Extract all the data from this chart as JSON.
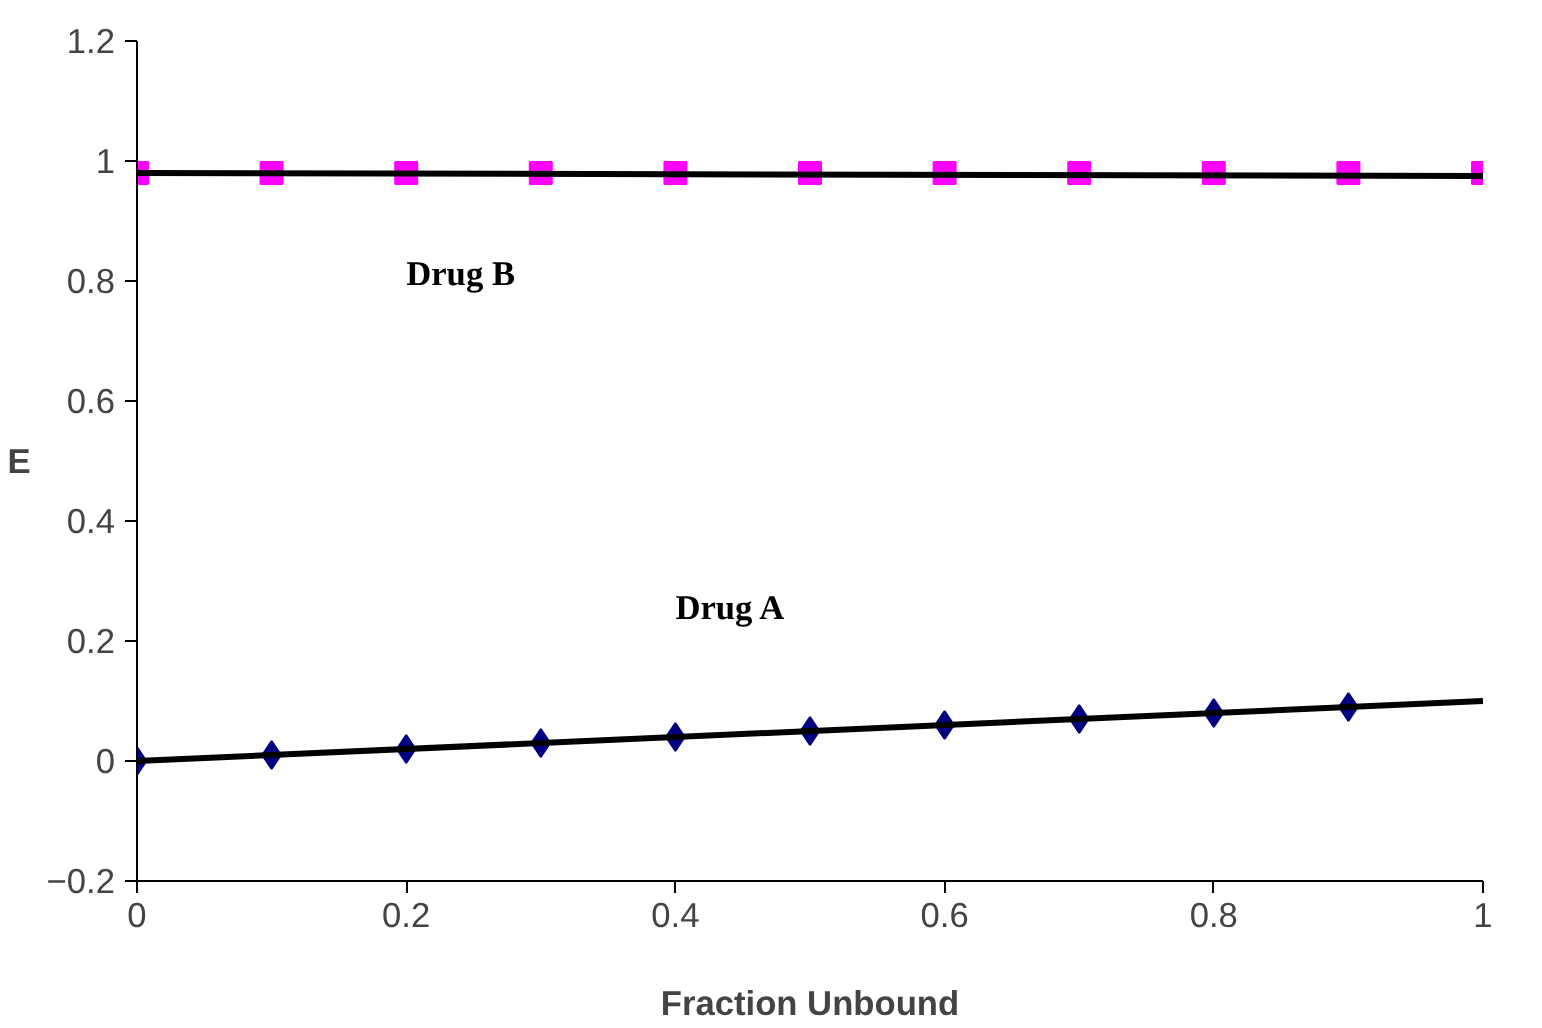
{
  "chart_data": {
    "type": "scatter",
    "xlabel": "Fraction Unbound",
    "ylabel": "E",
    "xlim": [
      0,
      1
    ],
    "ylim": [
      -0.2,
      1.2
    ],
    "xticks": [
      0,
      0.2,
      0.4,
      0.6,
      0.8,
      1
    ],
    "yticks": [
      -0.2,
      0,
      0.2,
      0.4,
      0.6,
      0.8,
      1,
      1.2
    ],
    "grid": false,
    "series": [
      {
        "name": "Drug A",
        "marker": "diamond",
        "color": "#000080",
        "x": [
          0,
          0.1,
          0.2,
          0.3,
          0.4,
          0.5,
          0.6,
          0.7,
          0.8,
          0.9
        ],
        "values": [
          0,
          0.01,
          0.02,
          0.03,
          0.04,
          0.05,
          0.06,
          0.07,
          0.08,
          0.09
        ]
      },
      {
        "name": "Drug B",
        "marker": "square",
        "color": "#ff00ff",
        "x": [
          0,
          0.1,
          0.2,
          0.3,
          0.4,
          0.5,
          0.6,
          0.7,
          0.8,
          0.9,
          1
        ],
        "values": [
          0.98,
          0.98,
          0.98,
          0.98,
          0.98,
          0.98,
          0.98,
          0.98,
          0.98,
          0.98,
          0.98
        ]
      },
      {
        "type": "line",
        "color": "#000000",
        "x": [
          0,
          1
        ],
        "values": [
          0,
          0.1
        ]
      },
      {
        "type": "line",
        "color": "#000000",
        "x": [
          0,
          1
        ],
        "values": [
          0.98,
          0.975
        ]
      }
    ]
  }
}
